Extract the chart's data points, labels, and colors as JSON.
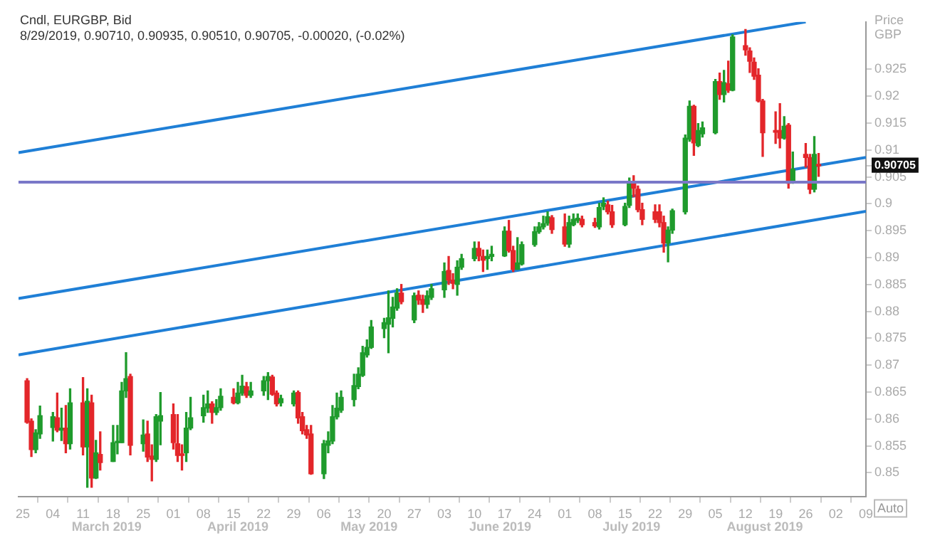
{
  "chart_data": {
    "type": "candlestick",
    "title": "Cndl, EURGBP, Bid",
    "subtitle": "8/29/2019, 0.90710, 0.90935, 0.90510, 0.90705, -0.00020, (-0.02%)",
    "ylabel": "Price GBP",
    "x": [
      "2019-02-26",
      "2019-02-27",
      "2019-02-28",
      "2019-03-01",
      "2019-03-04",
      "2019-03-05",
      "2019-03-06",
      "2019-03-07",
      "2019-03-08",
      "2019-03-11",
      "2019-03-12",
      "2019-03-13",
      "2019-03-14",
      "2019-03-15",
      "2019-03-18",
      "2019-03-19",
      "2019-03-20",
      "2019-03-21",
      "2019-03-22",
      "2019-03-25",
      "2019-03-26",
      "2019-03-27",
      "2019-03-28",
      "2019-03-29",
      "2019-04-01",
      "2019-04-02",
      "2019-04-03",
      "2019-04-04",
      "2019-04-05",
      "2019-04-08",
      "2019-04-09",
      "2019-04-10",
      "2019-04-11",
      "2019-04-12",
      "2019-04-15",
      "2019-04-16",
      "2019-04-17",
      "2019-04-18",
      "2019-04-19",
      "2019-04-22",
      "2019-04-23",
      "2019-04-24",
      "2019-04-25",
      "2019-04-26",
      "2019-04-29",
      "2019-04-30",
      "2019-05-01",
      "2019-05-02",
      "2019-05-03",
      "2019-05-06",
      "2019-05-07",
      "2019-05-08",
      "2019-05-09",
      "2019-05-10",
      "2019-05-13",
      "2019-05-14",
      "2019-05-15",
      "2019-05-16",
      "2019-05-17",
      "2019-05-20",
      "2019-05-21",
      "2019-05-22",
      "2019-05-23",
      "2019-05-24",
      "2019-05-27",
      "2019-05-28",
      "2019-05-29",
      "2019-05-30",
      "2019-05-31",
      "2019-06-03",
      "2019-06-04",
      "2019-06-05",
      "2019-06-06",
      "2019-06-07",
      "2019-06-10",
      "2019-06-11",
      "2019-06-12",
      "2019-06-13",
      "2019-06-14",
      "2019-06-17",
      "2019-06-18",
      "2019-06-19",
      "2019-06-20",
      "2019-06-21",
      "2019-06-24",
      "2019-06-25",
      "2019-06-26",
      "2019-06-27",
      "2019-06-28",
      "2019-07-01",
      "2019-07-02",
      "2019-07-03",
      "2019-07-04",
      "2019-07-05",
      "2019-07-08",
      "2019-07-09",
      "2019-07-10",
      "2019-07-11",
      "2019-07-12",
      "2019-07-15",
      "2019-07-16",
      "2019-07-17",
      "2019-07-18",
      "2019-07-19",
      "2019-07-22",
      "2019-07-23",
      "2019-07-24",
      "2019-07-25",
      "2019-07-26",
      "2019-07-29",
      "2019-07-30",
      "2019-07-31",
      "2019-08-01",
      "2019-08-02",
      "2019-08-05",
      "2019-08-06",
      "2019-08-07",
      "2019-08-08",
      "2019-08-09",
      "2019-08-12",
      "2019-08-13",
      "2019-08-14",
      "2019-08-15",
      "2019-08-16",
      "2019-08-19",
      "2019-08-20",
      "2019-08-21",
      "2019-08-22",
      "2019-08-23",
      "2019-08-26",
      "2019-08-27",
      "2019-08-28",
      "2019-08-29"
    ],
    "ohlc": [
      [
        0.8671,
        0.8675,
        0.8592,
        0.8594
      ],
      [
        0.8596,
        0.86,
        0.853,
        0.8543
      ],
      [
        0.8543,
        0.858,
        0.8537,
        0.8574
      ],
      [
        0.8572,
        0.8624,
        0.8564,
        0.8606
      ],
      [
        0.8584,
        0.8612,
        0.8559,
        0.8604
      ],
      [
        0.8602,
        0.8648,
        0.8576,
        0.8579
      ],
      [
        0.8579,
        0.862,
        0.856,
        0.8583
      ],
      [
        0.8583,
        0.8625,
        0.8537,
        0.8554
      ],
      [
        0.8554,
        0.8656,
        0.8544,
        0.863
      ],
      [
        0.863,
        0.8677,
        0.8533,
        0.8548
      ],
      [
        0.8548,
        0.8656,
        0.8473,
        0.8633
      ],
      [
        0.863,
        0.8644,
        0.8473,
        0.849
      ],
      [
        0.849,
        0.856,
        0.8489,
        0.8537
      ],
      [
        0.8534,
        0.8576,
        0.8505,
        0.8519
      ],
      [
        0.8521,
        0.8588,
        0.8521,
        0.8556
      ],
      [
        0.8556,
        0.8588,
        0.8535,
        0.8557
      ],
      [
        0.8556,
        0.8668,
        0.8556,
        0.8652
      ],
      [
        0.8652,
        0.8723,
        0.864,
        0.8675
      ],
      [
        0.8679,
        0.8683,
        0.8533,
        0.8551
      ],
      [
        0.8554,
        0.8598,
        0.854,
        0.857
      ],
      [
        0.8572,
        0.8596,
        0.8521,
        0.8529
      ],
      [
        0.8531,
        0.8552,
        0.8485,
        0.8525
      ],
      [
        0.8525,
        0.8608,
        0.8521,
        0.8604
      ],
      [
        0.8596,
        0.8649,
        0.8552,
        0.8606
      ],
      [
        0.8608,
        0.8628,
        0.8544,
        0.8556
      ],
      [
        0.8554,
        0.8608,
        0.8521,
        0.8532
      ],
      [
        0.8535,
        0.8552,
        0.8505,
        0.8532
      ],
      [
        0.8537,
        0.8612,
        0.8521,
        0.8583
      ],
      [
        0.8583,
        0.864,
        0.858,
        0.8602
      ],
      [
        0.8606,
        0.8644,
        0.8594,
        0.8621
      ],
      [
        0.862,
        0.8652,
        0.8612,
        0.8628
      ],
      [
        0.8628,
        0.8632,
        0.8592,
        0.8612
      ],
      [
        0.8612,
        0.8636,
        0.8608,
        0.8621
      ],
      [
        0.8621,
        0.8656,
        0.8616,
        0.8642
      ],
      [
        0.864,
        0.8656,
        0.8628,
        0.863
      ],
      [
        0.863,
        0.8668,
        0.8628,
        0.8648
      ],
      [
        0.8648,
        0.8681,
        0.8644,
        0.8661
      ],
      [
        0.866,
        0.8668,
        0.864,
        0.8644
      ],
      [
        0.8644,
        0.8668,
        0.864,
        0.8652
      ],
      [
        0.8652,
        0.8679,
        0.8644,
        0.8671
      ],
      [
        0.8671,
        0.8686,
        0.8636,
        0.8679
      ],
      [
        0.8678,
        0.8681,
        0.8644,
        0.8646
      ],
      [
        0.8648,
        0.8652,
        0.8624,
        0.8628
      ],
      [
        0.863,
        0.8644,
        0.8624,
        0.8638
      ],
      [
        0.8628,
        0.8652,
        0.8624,
        0.8648
      ],
      [
        0.8649,
        0.8652,
        0.8592,
        0.8602
      ],
      [
        0.8604,
        0.8612,
        0.8572,
        0.8578
      ],
      [
        0.858,
        0.8588,
        0.8564,
        0.857
      ],
      [
        0.8572,
        0.8588,
        0.8497,
        0.8498
      ],
      [
        0.8498,
        0.856,
        0.8489,
        0.8554
      ],
      [
        0.8551,
        0.8576,
        0.8537,
        0.8559
      ],
      [
        0.8559,
        0.8625,
        0.8554,
        0.8604
      ],
      [
        0.8604,
        0.8648,
        0.86,
        0.862
      ],
      [
        0.8616,
        0.8652,
        0.8612,
        0.864
      ],
      [
        0.8636,
        0.8683,
        0.8624,
        0.8662
      ],
      [
        0.866,
        0.8695,
        0.8656,
        0.8683
      ],
      [
        0.8681,
        0.8735,
        0.8679,
        0.8723
      ],
      [
        0.8719,
        0.8747,
        0.8715,
        0.8733
      ],
      [
        0.8733,
        0.8783,
        0.8731,
        0.8771
      ],
      [
        0.8768,
        0.8787,
        0.8751,
        0.8779
      ],
      [
        0.8776,
        0.8838,
        0.8723,
        0.8788
      ],
      [
        0.8787,
        0.8826,
        0.8771,
        0.8808
      ],
      [
        0.8806,
        0.8842,
        0.8802,
        0.8834
      ],
      [
        0.8834,
        0.885,
        0.8814,
        0.8818
      ],
      [
        0.8784,
        0.8834,
        0.8779,
        0.8829
      ],
      [
        0.883,
        0.8838,
        0.8813,
        0.8821
      ],
      [
        0.8822,
        0.883,
        0.8798,
        0.8813
      ],
      [
        0.8813,
        0.8838,
        0.8806,
        0.8829
      ],
      [
        0.8826,
        0.885,
        0.8822,
        0.8842
      ],
      [
        0.884,
        0.889,
        0.8826,
        0.8874
      ],
      [
        0.8876,
        0.8902,
        0.885,
        0.8858
      ],
      [
        0.8858,
        0.887,
        0.8842,
        0.8852
      ],
      [
        0.885,
        0.8894,
        0.883,
        0.8882
      ],
      [
        0.8882,
        0.8906,
        0.8878,
        0.8898
      ],
      [
        0.8898,
        0.8929,
        0.8894,
        0.8917
      ],
      [
        0.8917,
        0.8929,
        0.8894,
        0.8903
      ],
      [
        0.8902,
        0.8914,
        0.8874,
        0.8895
      ],
      [
        0.8898,
        0.8914,
        0.8878,
        0.8902
      ],
      [
        0.8902,
        0.8921,
        0.8894,
        0.8906
      ],
      [
        0.8903,
        0.8957,
        0.8902,
        0.8949
      ],
      [
        0.8949,
        0.8969,
        0.891,
        0.8913
      ],
      [
        0.8913,
        0.8921,
        0.8874,
        0.8878
      ],
      [
        0.8878,
        0.8937,
        0.8878,
        0.889
      ],
      [
        0.8888,
        0.8929,
        0.8886,
        0.8924
      ],
      [
        0.8924,
        0.8957,
        0.8921,
        0.8948
      ],
      [
        0.8948,
        0.8965,
        0.8945,
        0.8957
      ],
      [
        0.8957,
        0.8977,
        0.8953,
        0.8963
      ],
      [
        0.8964,
        0.8985,
        0.896,
        0.8976
      ],
      [
        0.8974,
        0.8978,
        0.8945,
        0.8952
      ],
      [
        0.8957,
        0.8981,
        0.8921,
        0.8925
      ],
      [
        0.8925,
        0.8977,
        0.8919,
        0.8965
      ],
      [
        0.8961,
        0.8981,
        0.8959,
        0.8971
      ],
      [
        0.8969,
        0.8981,
        0.8965,
        0.8973
      ],
      [
        0.8971,
        0.8977,
        0.8957,
        0.8961
      ],
      [
        0.8965,
        0.8973,
        0.8956,
        0.8959
      ],
      [
        0.8957,
        0.9001,
        0.8953,
        0.8993
      ],
      [
        0.8995,
        0.9011,
        0.8989,
        0.9001
      ],
      [
        0.8998,
        0.9005,
        0.8981,
        0.8985
      ],
      [
        0.8985,
        0.8997,
        0.8956,
        0.8961
      ],
      [
        0.8961,
        0.9001,
        0.8959,
        0.8995
      ],
      [
        0.8997,
        0.9048,
        0.8993,
        0.9037
      ],
      [
        0.9037,
        0.9052,
        0.9013,
        0.9029
      ],
      [
        0.9027,
        0.9033,
        0.8985,
        0.8989
      ],
      [
        0.8989,
        0.9001,
        0.8961,
        0.8971
      ],
      [
        0.8985,
        0.8998,
        0.8965,
        0.8971
      ],
      [
        0.8985,
        0.8998,
        0.8957,
        0.8965
      ],
      [
        0.8965,
        0.8977,
        0.891,
        0.8927
      ],
      [
        0.8927,
        0.8957,
        0.8892,
        0.8951
      ],
      [
        0.8951,
        0.899,
        0.8945,
        0.8987
      ],
      [
        0.8985,
        0.9128,
        0.8981,
        0.9122
      ],
      [
        0.912,
        0.9191,
        0.9116,
        0.9181
      ],
      [
        0.9181,
        0.9183,
        0.909,
        0.9113
      ],
      [
        0.9108,
        0.9149,
        0.9106,
        0.9136
      ],
      [
        0.913,
        0.9152,
        0.9124,
        0.9141
      ],
      [
        0.9132,
        0.9231,
        0.913,
        0.9227
      ],
      [
        0.9227,
        0.9243,
        0.9194,
        0.9203
      ],
      [
        0.9203,
        0.9248,
        0.9189,
        0.9225
      ],
      [
        0.9223,
        0.9265,
        0.9207,
        0.9211
      ],
      [
        0.9211,
        0.9314,
        0.921,
        0.931
      ],
      [
        0.9294,
        0.9324,
        0.9276,
        0.9286
      ],
      [
        0.9284,
        0.929,
        0.9244,
        0.9265
      ],
      [
        0.9263,
        0.9271,
        0.9231,
        0.9237
      ],
      [
        0.9239,
        0.9251,
        0.9189,
        0.9191
      ],
      [
        0.9191,
        0.9194,
        0.9088,
        0.9132
      ],
      [
        0.9136,
        0.9171,
        0.9112,
        0.9133
      ],
      [
        0.9136,
        0.9186,
        0.9104,
        0.9122
      ],
      [
        0.9122,
        0.9162,
        0.912,
        0.9144
      ],
      [
        0.9146,
        0.9149,
        0.9029,
        0.9038
      ],
      [
        0.904,
        0.9096,
        0.9038,
        0.9064
      ],
      [
        0.9092,
        0.9112,
        0.9068,
        0.9086
      ],
      [
        0.9086,
        0.9092,
        0.9019,
        0.9027
      ],
      [
        0.9027,
        0.9125,
        0.9022,
        0.9092
      ],
      [
        0.9071,
        0.90935,
        0.9051,
        0.90705
      ]
    ],
    "colors": [
      "#e3262a",
      "#e3262a",
      "#1f9b2c",
      "#1f9b2c",
      "#1f9b2c",
      "#e3262a",
      "#1f9b2c",
      "#e3262a",
      "#1f9b2c",
      "#e3262a",
      "#1f9b2c",
      "#e3262a",
      "#1f9b2c",
      "#e3262a",
      "#1f9b2c",
      "#1f9b2c",
      "#1f9b2c",
      "#1f9b2c",
      "#e3262a",
      "#1f9b2c",
      "#e3262a",
      "#e3262a",
      "#1f9b2c",
      "#1f9b2c",
      "#e3262a",
      "#e3262a",
      "#e3262a",
      "#1f9b2c",
      "#1f9b2c",
      "#1f9b2c",
      "#1f9b2c",
      "#e3262a",
      "#1f9b2c",
      "#1f9b2c",
      "#e3262a",
      "#1f9b2c",
      "#1f9b2c",
      "#e3262a",
      "#1f9b2c",
      "#1f9b2c",
      "#1f9b2c",
      "#e3262a",
      "#e3262a",
      "#1f9b2c",
      "#1f9b2c",
      "#e3262a",
      "#e3262a",
      "#e3262a",
      "#e3262a",
      "#1f9b2c",
      "#1f9b2c",
      "#1f9b2c",
      "#1f9b2c",
      "#1f9b2c",
      "#1f9b2c",
      "#1f9b2c",
      "#1f9b2c",
      "#1f9b2c",
      "#1f9b2c",
      "#1f9b2c",
      "#1f9b2c",
      "#1f9b2c",
      "#1f9b2c",
      "#e3262a",
      "#1f9b2c",
      "#e3262a",
      "#e3262a",
      "#1f9b2c",
      "#1f9b2c",
      "#1f9b2c",
      "#e3262a",
      "#e3262a",
      "#1f9b2c",
      "#1f9b2c",
      "#1f9b2c",
      "#e3262a",
      "#e3262a",
      "#1f9b2c",
      "#1f9b2c",
      "#1f9b2c",
      "#e3262a",
      "#e3262a",
      "#1f9b2c",
      "#1f9b2c",
      "#1f9b2c",
      "#1f9b2c",
      "#1f9b2c",
      "#1f9b2c",
      "#e3262a",
      "#e3262a",
      "#1f9b2c",
      "#1f9b2c",
      "#1f9b2c",
      "#e3262a",
      "#e3262a",
      "#1f9b2c",
      "#1f9b2c",
      "#e3262a",
      "#e3262a",
      "#1f9b2c",
      "#1f9b2c",
      "#e3262a",
      "#e3262a",
      "#e3262a",
      "#e3262a",
      "#e3262a",
      "#e3262a",
      "#1f9b2c",
      "#1f9b2c",
      "#1f9b2c",
      "#1f9b2c",
      "#e3262a",
      "#1f9b2c",
      "#1f9b2c",
      "#1f9b2c",
      "#e3262a",
      "#1f9b2c",
      "#e3262a",
      "#1f9b2c",
      "#e3262a",
      "#e3262a",
      "#e3262a",
      "#e3262a",
      "#e3262a",
      "#e3262a",
      "#e3262a",
      "#1f9b2c",
      "#e3262a",
      "#1f9b2c",
      "#e3262a",
      "#e3262a",
      "#1f9b2c",
      "#e3262a"
    ],
    "series": [
      {
        "type": "line",
        "color": "#1f7fd6",
        "x": [
          "2019-02-24",
          "2019-08-26"
        ],
        "values": [
          0.9095,
          0.9338
        ]
      },
      {
        "type": "line",
        "color": "#1f7fd6",
        "x": [
          "2019-02-24",
          "2019-09-09"
        ],
        "values": [
          0.8824,
          0.9086
        ]
      },
      {
        "type": "line",
        "color": "#1f7fd6",
        "x": [
          "2019-02-24",
          "2019-09-09"
        ],
        "values": [
          0.8719,
          0.8986
        ]
      }
    ],
    "ref_lines": [
      {
        "axis": "y",
        "value": 0.904,
        "color": "#7a78c8"
      }
    ],
    "xlim": [
      "2019-02-24",
      "2019-09-09"
    ],
    "xticks": [
      {
        "value": "2019-02-25",
        "label": "25"
      },
      {
        "value": "2019-03-04",
        "label": "04"
      },
      {
        "value": "2019-03-11",
        "label": "11"
      },
      {
        "value": "2019-03-18",
        "label": "18"
      },
      {
        "value": "2019-03-25",
        "label": "25"
      },
      {
        "value": "2019-04-01",
        "label": "01"
      },
      {
        "value": "2019-04-08",
        "label": "08"
      },
      {
        "value": "2019-04-15",
        "label": "15"
      },
      {
        "value": "2019-04-22",
        "label": "22"
      },
      {
        "value": "2019-04-29",
        "label": "29"
      },
      {
        "value": "2019-05-06",
        "label": "06"
      },
      {
        "value": "2019-05-13",
        "label": "13"
      },
      {
        "value": "2019-05-20",
        "label": "20"
      },
      {
        "value": "2019-05-27",
        "label": "27"
      },
      {
        "value": "2019-06-03",
        "label": "03"
      },
      {
        "value": "2019-06-10",
        "label": "10"
      },
      {
        "value": "2019-06-17",
        "label": "17"
      },
      {
        "value": "2019-06-24",
        "label": "24"
      },
      {
        "value": "2019-07-01",
        "label": "01"
      },
      {
        "value": "2019-07-08",
        "label": "08"
      },
      {
        "value": "2019-07-15",
        "label": "15"
      },
      {
        "value": "2019-07-22",
        "label": "22"
      },
      {
        "value": "2019-07-29",
        "label": "29"
      },
      {
        "value": "2019-08-05",
        "label": "05"
      },
      {
        "value": "2019-08-12",
        "label": "12"
      },
      {
        "value": "2019-08-19",
        "label": "19"
      },
      {
        "value": "2019-08-26",
        "label": "26"
      },
      {
        "value": "2019-09-02",
        "label": "02"
      },
      {
        "value": "2019-09-09",
        "label": "09"
      }
    ],
    "ylim": [
      0.8455,
      0.9338
    ],
    "yticks": [
      0.85,
      0.855,
      0.86,
      0.865,
      0.87,
      0.875,
      0.88,
      0.885,
      0.89,
      0.895,
      0.9,
      0.905,
      {
        "value": 0.90705,
        "label": "0.90705"
      },
      0.91,
      0.915,
      0.92,
      0.925
    ],
    "annotations": [
      "March 2019",
      "April 2019",
      "May 2019",
      "June 2019",
      "July 2019",
      "August 2019",
      "Auto"
    ],
    "grid": false,
    "legend": false
  }
}
